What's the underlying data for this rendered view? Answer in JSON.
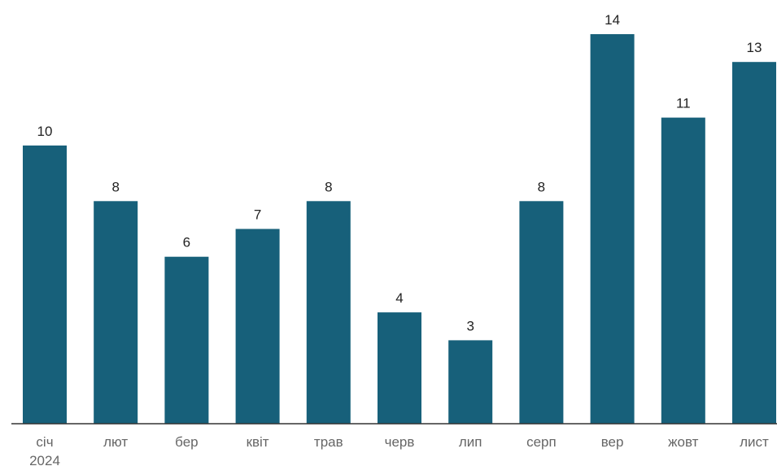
{
  "chart_data": {
    "type": "bar",
    "categories": [
      "січ",
      "лют",
      "бер",
      "квіт",
      "трав",
      "черв",
      "лип",
      "серп",
      "вер",
      "жовт",
      "лист"
    ],
    "year_label": "2024",
    "values": [
      10,
      8,
      6,
      7,
      8,
      4,
      3,
      8,
      14,
      11,
      13
    ],
    "ylim": [
      0,
      14
    ],
    "grid": false,
    "bar_color": "#17607a",
    "axis_color": "#333333",
    "title": "",
    "xlabel": "",
    "ylabel": ""
  }
}
